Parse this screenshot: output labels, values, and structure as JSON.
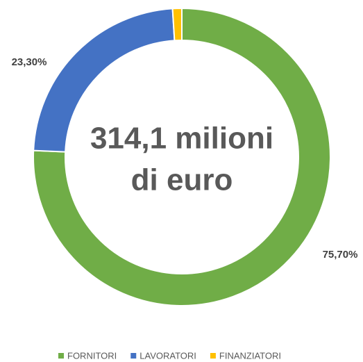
{
  "chart_data": {
    "type": "donut",
    "center_text": [
      "314,1 milioni",
      "di euro"
    ],
    "categories": [
      "FORNITORI",
      "LAVORATORI",
      "FINANZIATORI"
    ],
    "values": [
      75.7,
      23.3,
      1.0
    ],
    "value_labels": [
      "75,70%",
      "23,30%",
      null
    ],
    "colors": [
      "#70ad47",
      "#4472c4",
      "#ffc000"
    ],
    "legend": "bottom"
  }
}
